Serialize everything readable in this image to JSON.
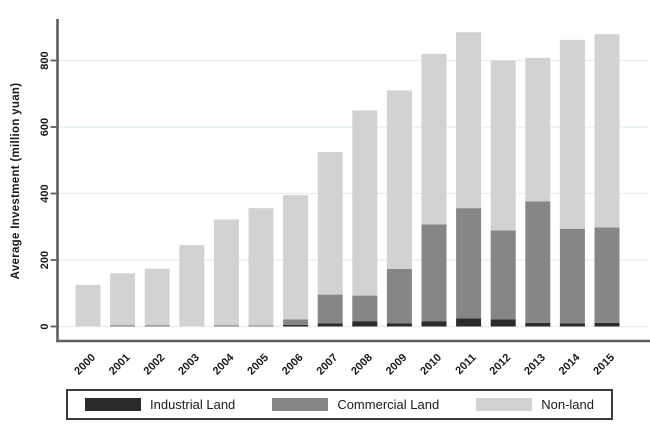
{
  "chart_data": {
    "type": "bar",
    "stacked": true,
    "title": "",
    "xlabel": "",
    "ylabel": "Average Investment (million yuan)",
    "categories": [
      "2000",
      "2001",
      "2002",
      "2003",
      "2004",
      "2005",
      "2006",
      "2007",
      "2008",
      "2009",
      "2010",
      "2011",
      "2012",
      "2013",
      "2014",
      "2015"
    ],
    "series": [
      {
        "name": "Industrial Land",
        "color": "#2b2b2b",
        "values": [
          0,
          0,
          0,
          0,
          0,
          0,
          5,
          9,
          16,
          9,
          16,
          24,
          21,
          11,
          9,
          11
        ]
      },
      {
        "name": "Commercial Land",
        "color": "#868686",
        "values": [
          0,
          4,
          4,
          0,
          4,
          3,
          16,
          87,
          77,
          164,
          291,
          332,
          268,
          365,
          285,
          287
        ]
      },
      {
        "name": "Non-land",
        "color": "#d2d2d2",
        "values": [
          125,
          156,
          170,
          245,
          318,
          353,
          374,
          429,
          557,
          537,
          513,
          529,
          511,
          432,
          568,
          581
        ]
      }
    ],
    "totals": [
      125,
      160,
      174,
      245,
      322,
      356,
      395,
      525,
      650,
      710,
      820,
      885,
      800,
      808,
      862,
      879
    ],
    "ylim": [
      0,
      900
    ],
    "yticks": [
      0,
      200,
      400,
      600,
      800
    ],
    "grid": true,
    "legend_position": "bottom",
    "colors": {
      "grid_color": "#e7f1f0",
      "axis_color": "#5f5f5f",
      "text_color": "#1a1a1a"
    }
  }
}
